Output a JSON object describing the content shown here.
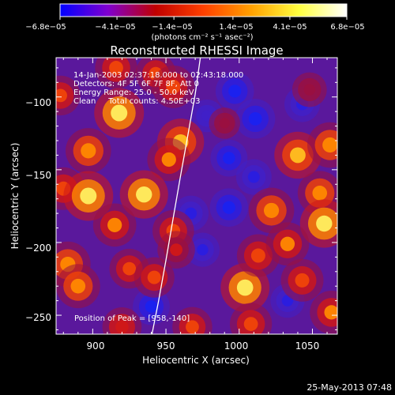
{
  "chart_data": {
    "type": "heatmap",
    "title": "Reconstructed RHESSI Image",
    "xlabel": "Heliocentric X (arcsec)",
    "ylabel": "Heliocentric Y (arcsec)",
    "xlim": [
      875,
      1067
    ],
    "ylim": [
      -263,
      -73
    ],
    "xticks": [
      900,
      950,
      1000,
      1050
    ],
    "xtick_labels": [
      "900",
      "950",
      "1000",
      "1050"
    ],
    "yticks": [
      -100,
      -150,
      -200,
      -250
    ],
    "ytick_labels": [
      "−100",
      "−150",
      "−200",
      "−250"
    ],
    "colorbar": {
      "min": -6.8e-05,
      "max": 6.8e-05,
      "tick_values": [
        -6.8e-05,
        -4.1e-05,
        -1.4e-05,
        1.4e-05,
        4.1e-05,
        6.8e-05
      ],
      "tick_labels": [
        "−6.8e−05",
        "−4.1e−05",
        "−1.4e−05",
        "1.4e−05",
        "4.1e−05",
        "6.8e−05"
      ],
      "unit_label": "(photons cm⁻² s⁻¹ asec⁻²)",
      "colormap": [
        "#0000ff",
        "#8000d0",
        "#c00000",
        "#ff4000",
        "#ffa000",
        "#ffff40",
        "#ffffff"
      ]
    },
    "annotations": [
      "14-Jan-2003 02:37:18.000 to 02:43:18.000",
      "Detectors: 4F 5F 6F 7F 8F, Att 0",
      "Energy Range: 25.0 - 50.0 keV",
      "Clean     Total counts: 4.50E+03"
    ],
    "peak_label": "Position of Peak = [958,-140]",
    "limb_curve": {
      "x": [
        940.5,
        945,
        950,
        955,
        960,
        965,
        970,
        973.5
      ],
      "y": [
        -263,
        -240,
        -212,
        -183,
        -154,
        -126,
        -98,
        -73
      ]
    },
    "heat_blobs": [
      {
        "x": 916,
        "y": -80,
        "v": 0.68
      },
      {
        "x": 943,
        "y": -84,
        "v": 0.62
      },
      {
        "x": 955,
        "y": -93,
        "v": 0.7
      },
      {
        "x": 878,
        "y": -99,
        "v": 0.6
      },
      {
        "x": 918,
        "y": -111,
        "v": 0.95
      },
      {
        "x": 960,
        "y": -131,
        "v": 0.85
      },
      {
        "x": 952,
        "y": -143,
        "v": 0.72
      },
      {
        "x": 897,
        "y": -137,
        "v": 0.8
      },
      {
        "x": 880,
        "y": -163,
        "v": 0.7
      },
      {
        "x": 897,
        "y": -168,
        "v": 0.95
      },
      {
        "x": 935,
        "y": -167,
        "v": 0.9
      },
      {
        "x": 915,
        "y": -188,
        "v": 0.72
      },
      {
        "x": 955,
        "y": -192,
        "v": 0.66
      },
      {
        "x": 883,
        "y": -215,
        "v": 0.8
      },
      {
        "x": 890,
        "y": -230,
        "v": 0.75
      },
      {
        "x": 925,
        "y": -218,
        "v": 0.6
      },
      {
        "x": 942,
        "y": -224,
        "v": 0.62
      },
      {
        "x": 920,
        "y": -258,
        "v": 0.58
      },
      {
        "x": 1004,
        "y": -231,
        "v": 0.92
      },
      {
        "x": 1013,
        "y": -209,
        "v": 0.7
      },
      {
        "x": 1022,
        "y": -178,
        "v": 0.8
      },
      {
        "x": 1040,
        "y": -140,
        "v": 0.85
      },
      {
        "x": 1062,
        "y": -133,
        "v": 0.8
      },
      {
        "x": 1055,
        "y": -166,
        "v": 0.75
      },
      {
        "x": 1058,
        "y": -187,
        "v": 0.9
      },
      {
        "x": 1033,
        "y": -201,
        "v": 0.72
      },
      {
        "x": 1043,
        "y": -226,
        "v": 0.7
      },
      {
        "x": 1063,
        "y": -248,
        "v": 0.72
      },
      {
        "x": 1008,
        "y": -256,
        "v": 0.68
      },
      {
        "x": 968,
        "y": -258,
        "v": 0.6
      },
      {
        "x": 957,
        "y": -205,
        "v": 0.52
      },
      {
        "x": 990,
        "y": -118,
        "v": 0.3
      },
      {
        "x": 1048,
        "y": -95,
        "v": 0.42
      }
    ],
    "cool_blobs": [
      {
        "x": 997,
        "y": -96,
        "v": -0.55
      },
      {
        "x": 1011,
        "y": -115,
        "v": -0.6
      },
      {
        "x": 993,
        "y": -142,
        "v": -0.5
      },
      {
        "x": 993,
        "y": -176,
        "v": -0.55
      },
      {
        "x": 1010,
        "y": -155,
        "v": -0.45
      },
      {
        "x": 1043,
        "y": -105,
        "v": -0.45
      },
      {
        "x": 967,
        "y": -180,
        "v": -0.45
      },
      {
        "x": 975,
        "y": -205,
        "v": -0.4
      },
      {
        "x": 940,
        "y": -244,
        "v": -0.5
      },
      {
        "x": 1033,
        "y": -240,
        "v": -0.4
      },
      {
        "x": 978,
        "y": -113,
        "v": -0.35
      }
    ]
  },
  "timestamp": "25-May-2013 07:48"
}
